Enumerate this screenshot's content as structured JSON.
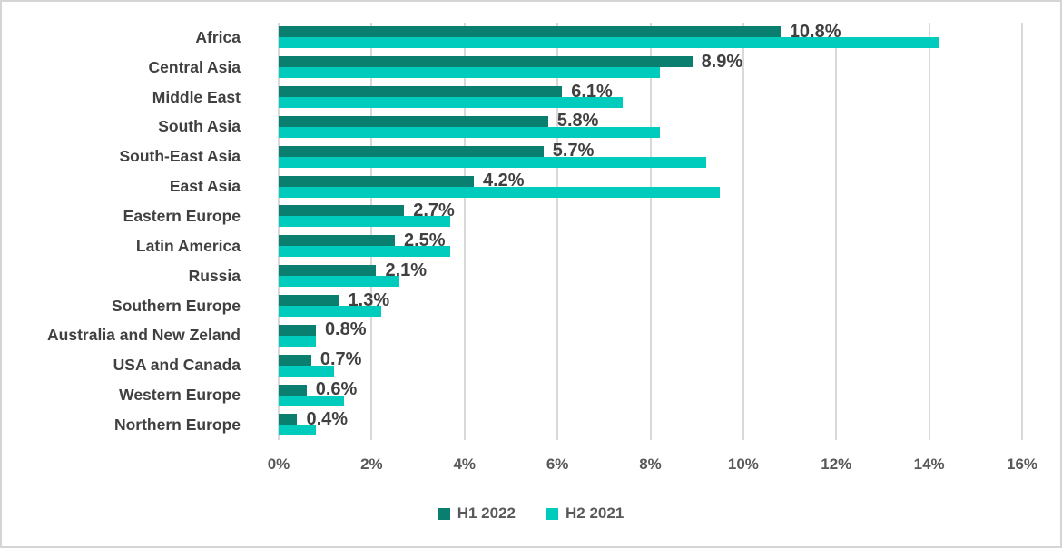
{
  "chart_data": {
    "type": "bar",
    "orientation": "horizontal",
    "title": "",
    "xlabel": "",
    "ylabel": "",
    "categories": [
      "Africa",
      "Central Asia",
      "Middle East",
      "South Asia",
      "South-East Asia",
      "East Asia",
      "Eastern Europe",
      "Latin America",
      "Russia",
      "Southern Europe",
      "Australia and New Zeland",
      "USA and Canada",
      "Western Europe",
      "Northern Europe"
    ],
    "series": [
      {
        "name": "H1 2022",
        "color": "#0A7F6F",
        "values": [
          10.8,
          8.9,
          6.1,
          5.8,
          5.7,
          4.2,
          2.7,
          2.5,
          2.1,
          1.3,
          0.8,
          0.7,
          0.6,
          0.4
        ],
        "data_labels": [
          "10.8%",
          "8.9%",
          "6.1%",
          "5.8%",
          "5.7%",
          "4.2%",
          "2.7%",
          "2.5%",
          "2.1%",
          "1.3%",
          "0.8%",
          "0.7%",
          "0.6%",
          "0.4%"
        ]
      },
      {
        "name": "H2 2021",
        "color": "#00CCBE",
        "values": [
          14.2,
          8.2,
          7.4,
          8.2,
          9.2,
          9.5,
          3.7,
          3.7,
          2.6,
          2.2,
          0.8,
          1.2,
          1.4,
          0.8
        ],
        "data_labels": []
      }
    ],
    "x_axis": {
      "min": 0,
      "max": 16,
      "tick_labels": [
        "0%",
        "2%",
        "4%",
        "6%",
        "8%",
        "10%",
        "12%",
        "14%",
        "16%"
      ]
    },
    "grid": "vertical-on",
    "legend": {
      "position": "bottom",
      "entries": [
        "H1 2022",
        "H2 2021"
      ]
    },
    "colors": {
      "h1_2022": "#0A7F6F",
      "h2_2021": "#00CCBE",
      "gridline": "#D9D9D9",
      "category_text": "#404040",
      "data_label_text": "#404040",
      "axis_text": "#595959",
      "legend_text": "#595959",
      "frame_border": "#D5D5D5",
      "background": "#FFFFFF"
    }
  }
}
